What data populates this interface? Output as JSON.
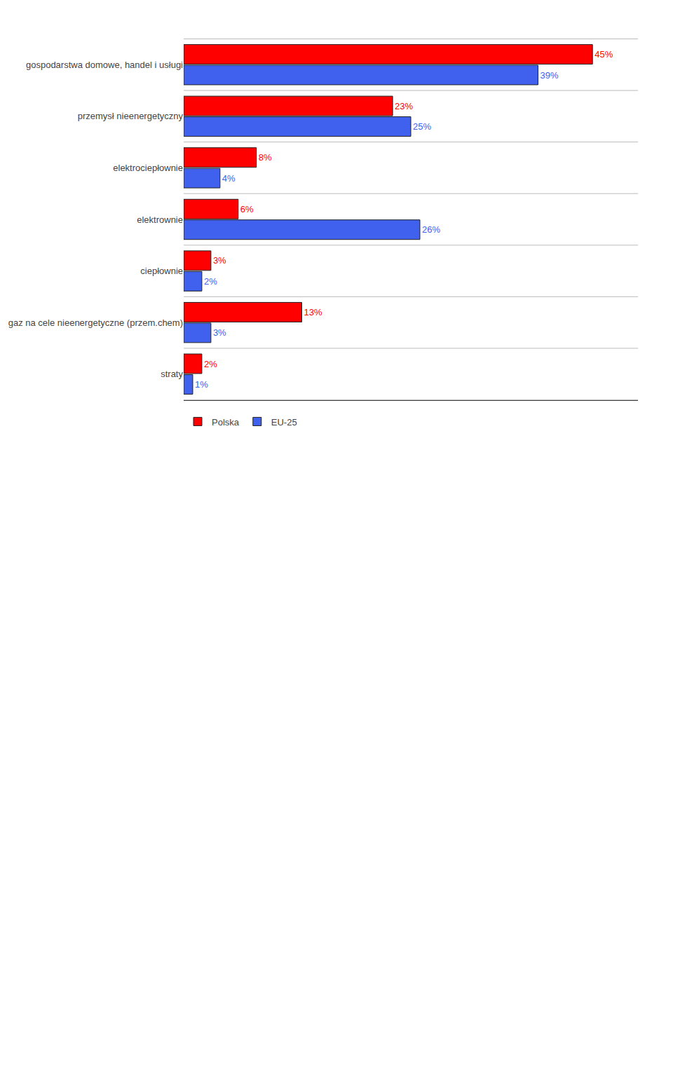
{
  "chart_data": {
    "type": "bar",
    "orientation": "horizontal",
    "categories": [
      "gospodarstwa domowe, handel i usługi",
      "przemysł nieenergetyczny",
      "elektrociepłownie",
      "elektrownie",
      "ciepłownie",
      "gaz na cele nieenergetyczne (przem.chem)",
      "straty"
    ],
    "series": [
      {
        "name": "Polska",
        "color": "#FF0000",
        "values": [
          45,
          23,
          8,
          6,
          3,
          13,
          2
        ],
        "value_labels": [
          "45%",
          "23%",
          "8%",
          "6%",
          "3%",
          "13%",
          "2%"
        ]
      },
      {
        "name": "EU-25",
        "color": "#4060EE",
        "values": [
          39,
          25,
          4,
          26,
          2,
          3,
          1
        ],
        "value_labels": [
          "39%",
          "25%",
          "4%",
          "26%",
          "2%",
          "3%",
          "1%"
        ]
      }
    ],
    "xlim": [
      0,
      50
    ],
    "xticks": [],
    "data_labels": true,
    "tick_labels": "y",
    "legend": "bottom left"
  }
}
